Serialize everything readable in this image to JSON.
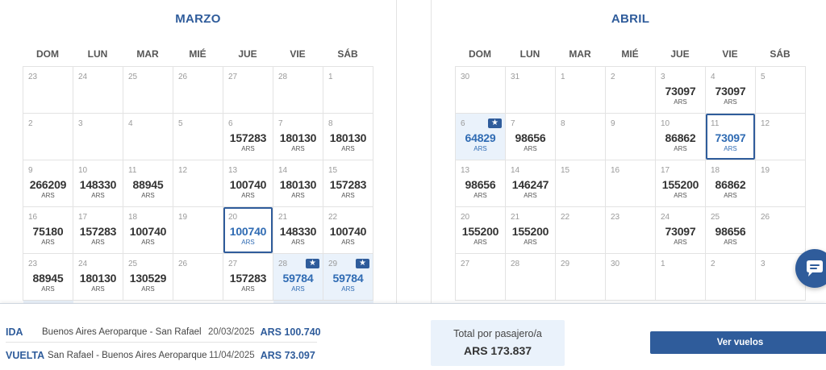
{
  "calendar": {
    "weekdays": [
      "DOM",
      "LUN",
      "MAR",
      "MIÉ",
      "JUE",
      "VIE",
      "SÁB"
    ],
    "months": [
      {
        "title": "MARZO",
        "weeks": [
          [
            {
              "day": "23"
            },
            {
              "day": "24"
            },
            {
              "day": "25"
            },
            {
              "day": "26"
            },
            {
              "day": "27"
            },
            {
              "day": "28"
            },
            {
              "day": "1"
            }
          ],
          [
            {
              "day": "2"
            },
            {
              "day": "3"
            },
            {
              "day": "4"
            },
            {
              "day": "5"
            },
            {
              "day": "6",
              "price": "157283",
              "currency": "ARS"
            },
            {
              "day": "7",
              "price": "180130",
              "currency": "ARS"
            },
            {
              "day": "8",
              "price": "180130",
              "currency": "ARS"
            }
          ],
          [
            {
              "day": "9",
              "price": "266209",
              "currency": "ARS"
            },
            {
              "day": "10",
              "price": "148330",
              "currency": "ARS"
            },
            {
              "day": "11",
              "price": "88945",
              "currency": "ARS"
            },
            {
              "day": "12"
            },
            {
              "day": "13",
              "price": "100740",
              "currency": "ARS"
            },
            {
              "day": "14",
              "price": "180130",
              "currency": "ARS"
            },
            {
              "day": "15",
              "price": "157283",
              "currency": "ARS"
            }
          ],
          [
            {
              "day": "16",
              "price": "75180",
              "currency": "ARS"
            },
            {
              "day": "17",
              "price": "157283",
              "currency": "ARS"
            },
            {
              "day": "18",
              "price": "100740",
              "currency": "ARS"
            },
            {
              "day": "19"
            },
            {
              "day": "20",
              "price": "100740",
              "currency": "ARS",
              "selected": true
            },
            {
              "day": "21",
              "price": "148330",
              "currency": "ARS"
            },
            {
              "day": "22",
              "price": "100740",
              "currency": "ARS"
            }
          ],
          [
            {
              "day": "23",
              "price": "88945",
              "currency": "ARS"
            },
            {
              "day": "24",
              "price": "180130",
              "currency": "ARS"
            },
            {
              "day": "25",
              "price": "130529",
              "currency": "ARS"
            },
            {
              "day": "26"
            },
            {
              "day": "27",
              "price": "157283",
              "currency": "ARS"
            },
            {
              "day": "28",
              "price": "59784",
              "currency": "ARS",
              "best": true
            },
            {
              "day": "29",
              "price": "59784",
              "currency": "ARS",
              "best": true
            }
          ]
        ]
      },
      {
        "title": "ABRIL",
        "weeks": [
          [
            {
              "day": "30"
            },
            {
              "day": "31"
            },
            {
              "day": "1"
            },
            {
              "day": "2"
            },
            {
              "day": "3",
              "price": "73097",
              "currency": "ARS"
            },
            {
              "day": "4",
              "price": "73097",
              "currency": "ARS"
            },
            {
              "day": "5"
            }
          ],
          [
            {
              "day": "6",
              "price": "64829",
              "currency": "ARS",
              "best": true
            },
            {
              "day": "7",
              "price": "98656",
              "currency": "ARS"
            },
            {
              "day": "8"
            },
            {
              "day": "9"
            },
            {
              "day": "10",
              "price": "86862",
              "currency": "ARS"
            },
            {
              "day": "11",
              "price": "73097",
              "currency": "ARS",
              "selected": true
            },
            {
              "day": "12"
            }
          ],
          [
            {
              "day": "13",
              "price": "98656",
              "currency": "ARS"
            },
            {
              "day": "14",
              "price": "146247",
              "currency": "ARS"
            },
            {
              "day": "15"
            },
            {
              "day": "16"
            },
            {
              "day": "17",
              "price": "155200",
              "currency": "ARS"
            },
            {
              "day": "18",
              "price": "86862",
              "currency": "ARS"
            },
            {
              "day": "19"
            }
          ],
          [
            {
              "day": "20",
              "price": "155200",
              "currency": "ARS"
            },
            {
              "day": "21",
              "price": "155200",
              "currency": "ARS"
            },
            {
              "day": "22"
            },
            {
              "day": "23"
            },
            {
              "day": "24",
              "price": "73097",
              "currency": "ARS"
            },
            {
              "day": "25",
              "price": "98656",
              "currency": "ARS"
            },
            {
              "day": "26"
            }
          ],
          [
            {
              "day": "27"
            },
            {
              "day": "28"
            },
            {
              "day": "29"
            },
            {
              "day": "30"
            },
            {
              "day": "1"
            },
            {
              "day": "2"
            },
            {
              "day": "3"
            }
          ]
        ]
      }
    ]
  },
  "summary": {
    "ida": {
      "tag": "IDA",
      "route": "Buenos Aires Aeroparque - San Rafael",
      "date": "20/03/2025",
      "price": "ARS 100.740"
    },
    "vuelta": {
      "tag": "VUELTA",
      "route": "San Rafael - Buenos Aires Aeroparque",
      "date": "11/04/2025",
      "price": "ARS 73.097"
    },
    "total_label": "Total por pasajero/a",
    "total_value": "ARS 173.837",
    "cta_label": "Ver vuelos"
  },
  "theme": {
    "accent": "#2f5c9b",
    "highlight_bg": "#eaf2fb"
  },
  "icons": {
    "best_price": "star-ticket-icon",
    "chat": "chat-icon"
  }
}
